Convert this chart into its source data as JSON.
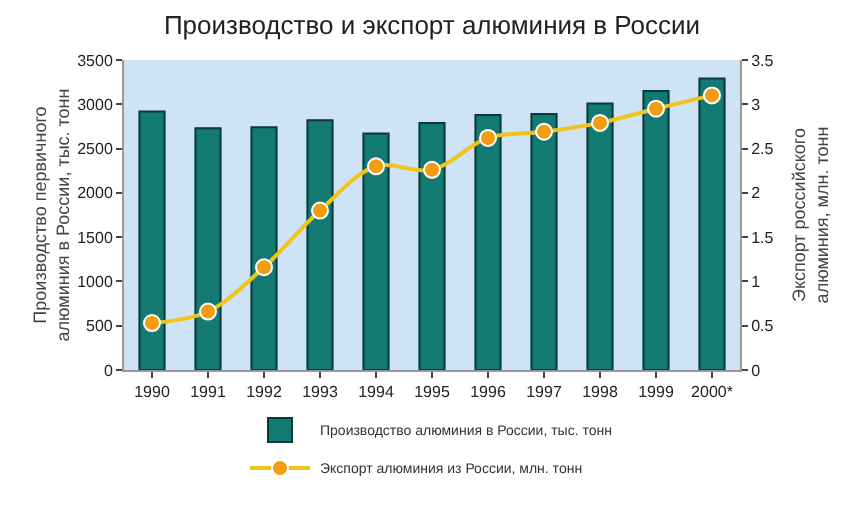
{
  "chart_data": {
    "type": "bar",
    "title": "Производство и экспорт алюминия в России",
    "ylabel": "Производство первичного алюминия в России, тыс. тонн",
    "y2label": "Экспорт российского алюминия, млн. тонн",
    "categories": [
      "1990",
      "1991",
      "1992",
      "1993",
      "1994",
      "1995",
      "1996",
      "1997",
      "1998",
      "1999",
      "2000*"
    ],
    "series": [
      {
        "name": "Производство алюминия в России, тыс. тонн",
        "color": "#127a72",
        "values": [
          2920,
          2730,
          2740,
          2820,
          2670,
          2790,
          2880,
          2890,
          3010,
          3150,
          3290
        ]
      },
      {
        "name": "Экспорт алюминия из России, млн. тонн",
        "type": "line",
        "axis": "y2",
        "color": "#f0c419",
        "values": [
          0.53,
          0.66,
          1.16,
          1.8,
          2.3,
          2.26,
          2.62,
          2.69,
          2.79,
          2.95,
          3.1
        ]
      }
    ],
    "ylim": [
      0,
      3500
    ],
    "yticks": [
      0,
      500,
      1000,
      1500,
      2000,
      2500,
      3000,
      3500
    ],
    "y2lim": [
      0,
      3.5
    ],
    "y2ticks": [
      0,
      0.5,
      1,
      1.5,
      2,
      2.5,
      3,
      3.5
    ],
    "marker": "circle",
    "grid": false,
    "legend": "bottom"
  }
}
